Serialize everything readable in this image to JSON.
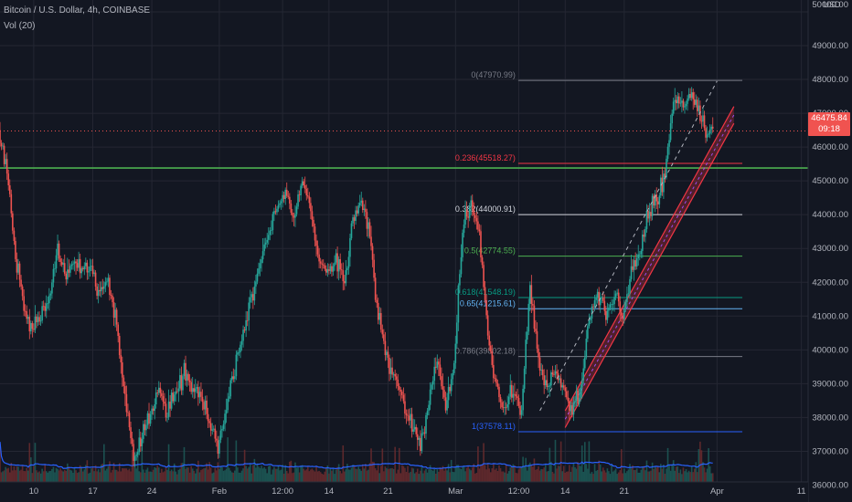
{
  "header": {
    "title": "Bitcoin / U.S. Dollar, 4h, COINBASE",
    "volume_label": "Vol (20)"
  },
  "price_axis": {
    "unit": "USD",
    "ticks": [
      "50000.00",
      "49000.00",
      "48000.00",
      "47000.00",
      "46000.00",
      "45000.00",
      "44000.00",
      "43000.00",
      "42000.00",
      "41000.00",
      "40000.00",
      "39000.00",
      "38000.00",
      "37000.00",
      "36000.00"
    ],
    "tick_values": [
      50000,
      49000,
      48000,
      47000,
      46000,
      45000,
      44000,
      43000,
      42000,
      41000,
      40000,
      39000,
      38000,
      37000,
      36000
    ],
    "ylim": [
      35500,
      50350
    ]
  },
  "time_axis": {
    "labels": [
      "10",
      "17",
      "24",
      "Feb",
      "12:00",
      "14",
      "21",
      "Mar",
      "12:00",
      "14",
      "21",
      "Apr",
      "11"
    ],
    "ticks": [
      "2021-01-10",
      "2021-01-17",
      "2021-01-24",
      "2021-02-01",
      "2021-02-08 12:00",
      "2021-02-14",
      "2021-02-21",
      "2021-03-01",
      "2021-03-08 12:00",
      "2021-03-14",
      "2021-03-21",
      "2021-04-01",
      "2021-04-11"
    ]
  },
  "current_price": {
    "label": "46475.84",
    "countdown": "09:18",
    "value": 46475.84,
    "color": "#f05350"
  },
  "chart_data": {
    "type": "candlestick",
    "symbol": "Bitcoin / U.S. Dollar",
    "interval": "4h",
    "exchange": "COINBASE",
    "close_path": [
      {
        "x": "2021-01-06",
        "y": 46500
      },
      {
        "x": "2021-01-07",
        "y": 45200
      },
      {
        "x": "2021-01-08",
        "y": 42800
      },
      {
        "x": "2021-01-09",
        "y": 41200
      },
      {
        "x": "2021-01-10",
        "y": 40500
      },
      {
        "x": "2021-01-12",
        "y": 41500
      },
      {
        "x": "2021-01-13",
        "y": 43000
      },
      {
        "x": "2021-01-14",
        "y": 42200
      },
      {
        "x": "2021-01-15",
        "y": 42600
      },
      {
        "x": "2021-01-17",
        "y": 42400
      },
      {
        "x": "2021-01-18",
        "y": 41600
      },
      {
        "x": "2021-01-19",
        "y": 42100
      },
      {
        "x": "2021-01-20",
        "y": 40800
      },
      {
        "x": "2021-01-21",
        "y": 38500
      },
      {
        "x": "2021-01-22",
        "y": 36800
      },
      {
        "x": "2021-01-23",
        "y": 37500
      },
      {
        "x": "2021-01-25",
        "y": 38800
      },
      {
        "x": "2021-01-26",
        "y": 38200
      },
      {
        "x": "2021-01-28",
        "y": 39300
      },
      {
        "x": "2021-01-30",
        "y": 38600
      },
      {
        "x": "2021-02-01",
        "y": 37200
      },
      {
        "x": "2021-02-03",
        "y": 39500
      },
      {
        "x": "2021-02-06",
        "y": 42600
      },
      {
        "x": "2021-02-08",
        "y": 44200
      },
      {
        "x": "2021-02-09",
        "y": 44800
      },
      {
        "x": "2021-02-10",
        "y": 43800
      },
      {
        "x": "2021-02-11",
        "y": 45200
      },
      {
        "x": "2021-02-12",
        "y": 44000
      },
      {
        "x": "2021-02-13",
        "y": 42600
      },
      {
        "x": "2021-02-14",
        "y": 42200
      },
      {
        "x": "2021-02-15",
        "y": 42800
      },
      {
        "x": "2021-02-16",
        "y": 41900
      },
      {
        "x": "2021-02-17",
        "y": 43900
      },
      {
        "x": "2021-02-18",
        "y": 44400
      },
      {
        "x": "2021-02-19",
        "y": 43500
      },
      {
        "x": "2021-02-20",
        "y": 41000
      },
      {
        "x": "2021-02-21",
        "y": 39800
      },
      {
        "x": "2021-02-22",
        "y": 39200
      },
      {
        "x": "2021-02-23",
        "y": 38400
      },
      {
        "x": "2021-02-24",
        "y": 37700
      },
      {
        "x": "2021-02-25",
        "y": 37200
      },
      {
        "x": "2021-02-26",
        "y": 38400
      },
      {
        "x": "2021-02-27",
        "y": 39800
      },
      {
        "x": "2021-02-28",
        "y": 38300
      },
      {
        "x": "2021-03-01",
        "y": 39600
      },
      {
        "x": "2021-03-02",
        "y": 43500
      },
      {
        "x": "2021-03-03",
        "y": 44500
      },
      {
        "x": "2021-03-04",
        "y": 43400
      },
      {
        "x": "2021-03-05",
        "y": 40400
      },
      {
        "x": "2021-03-06",
        "y": 38800
      },
      {
        "x": "2021-03-07",
        "y": 38200
      },
      {
        "x": "2021-03-08",
        "y": 38900
      },
      {
        "x": "2021-03-09",
        "y": 38200
      },
      {
        "x": "2021-03-10",
        "y": 41900
      },
      {
        "x": "2021-03-11",
        "y": 39600
      },
      {
        "x": "2021-03-12",
        "y": 38800
      },
      {
        "x": "2021-03-13",
        "y": 39400
      },
      {
        "x": "2021-03-14",
        "y": 38800
      },
      {
        "x": "2021-03-15",
        "y": 38300
      },
      {
        "x": "2021-03-16",
        "y": 38800
      },
      {
        "x": "2021-03-17",
        "y": 40900
      },
      {
        "x": "2021-03-18",
        "y": 41700
      },
      {
        "x": "2021-03-19",
        "y": 41000
      },
      {
        "x": "2021-03-20",
        "y": 41700
      },
      {
        "x": "2021-03-21",
        "y": 40900
      },
      {
        "x": "2021-03-22",
        "y": 42400
      },
      {
        "x": "2021-03-23",
        "y": 42800
      },
      {
        "x": "2021-03-24",
        "y": 44100
      },
      {
        "x": "2021-03-25",
        "y": 44500
      },
      {
        "x": "2021-03-26",
        "y": 45100
      },
      {
        "x": "2021-03-27",
        "y": 47500
      },
      {
        "x": "2021-03-28",
        "y": 47200
      },
      {
        "x": "2021-03-29",
        "y": 47600
      },
      {
        "x": "2021-03-30",
        "y": 47000
      },
      {
        "x": "2021-03-31",
        "y": 46476
      }
    ],
    "fibonacci": {
      "label_color": "#787b86",
      "levels": [
        {
          "ratio": "0",
          "value": "47970.99",
          "price": 47970.99,
          "color": "#787b86"
        },
        {
          "ratio": "0.236",
          "value": "45518.27",
          "price": 45518.27,
          "color": "#f23645"
        },
        {
          "ratio": "0.382",
          "value": "44000.91",
          "price": 44000.91,
          "color": "#d1d4dc"
        },
        {
          "ratio": "0.5",
          "value": "42774.55",
          "price": 42774.55,
          "color": "#4caf50"
        },
        {
          "ratio": "0.618",
          "value": "41548.19",
          "price": 41548.19,
          "color": "#089981"
        },
        {
          "ratio": "0.65",
          "value": "41215.61",
          "price": 41215.61,
          "color": "#64b5f6"
        },
        {
          "ratio": "0.786",
          "value": "39802.18",
          "price": 39802.18,
          "color": "#787b86"
        },
        {
          "ratio": "1",
          "value": "37578.11",
          "price": 37578.11,
          "color": "#2962ff"
        }
      ]
    },
    "horizontal_line": {
      "price": 45380,
      "color": "#4caf50"
    },
    "trend_channel": {
      "start": {
        "x": "2021-03-14",
        "y": 37700
      },
      "end": {
        "x": "2021-04-03",
        "y": 46700
      },
      "width": 500,
      "color": "#f23645"
    },
    "dashed_trend": {
      "start": {
        "x": "2021-03-11",
        "y": 38200
      },
      "end": {
        "x": "2021-04-01",
        "y": 47950
      },
      "color": "#b2b5be"
    },
    "volume_ma_color": "#2962ff",
    "up_color": "#26a69a",
    "down_color": "#ef5350",
    "xlim": [
      "2021-01-06",
      "2021-04-17"
    ],
    "ylim": [
      35500,
      50350
    ]
  }
}
